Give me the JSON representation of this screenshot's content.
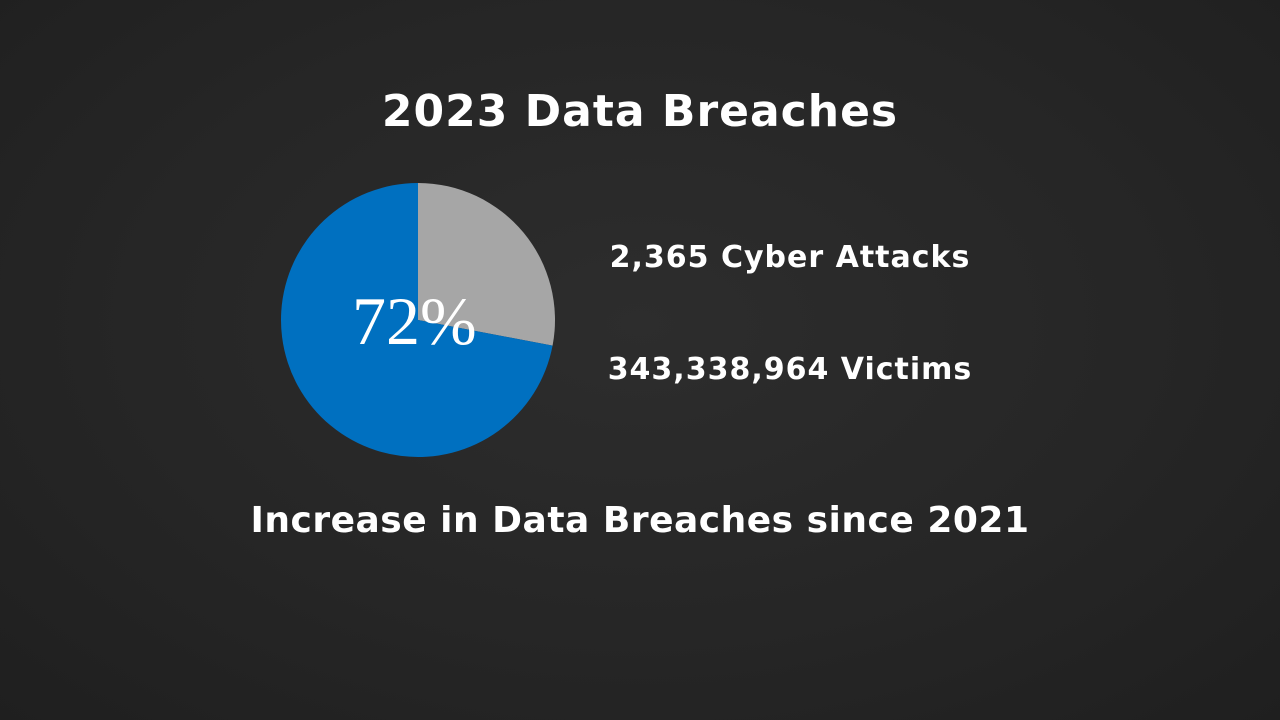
{
  "slide": {
    "title": "2023 Data Breaches",
    "stats": {
      "attacks": "2,365 Cyber Attacks",
      "victims": "343,338,964 Victims"
    },
    "subtitle": "Increase in Data Breaches since 2021"
  },
  "chart_data": {
    "type": "pie",
    "title": "",
    "center_label": "72%",
    "slices": [
      {
        "value": 72,
        "color": "#0070C0"
      },
      {
        "value": 28,
        "color": "#A6A6A6"
      }
    ]
  }
}
